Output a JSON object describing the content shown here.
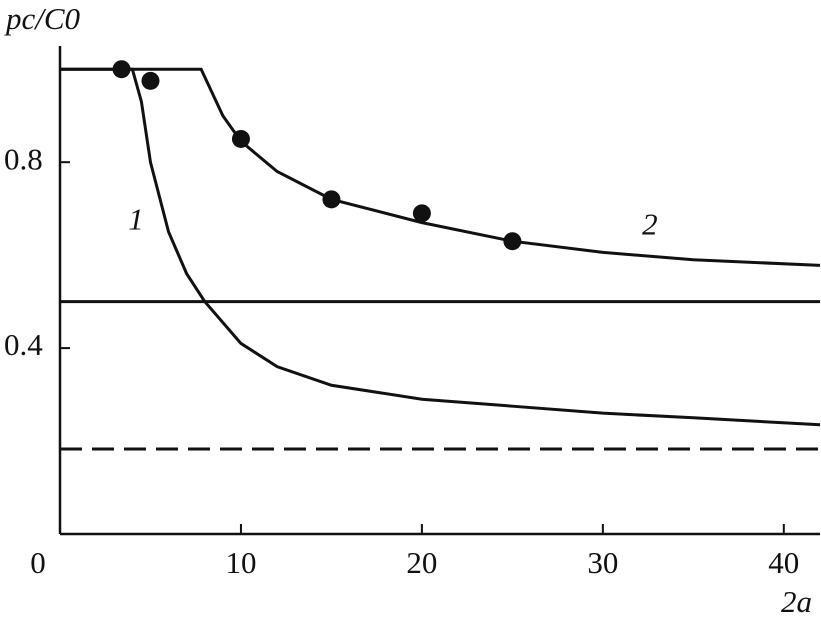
{
  "chart_data": {
    "type": "line",
    "y_label": "pc/C0",
    "x_label": "2a",
    "xlim": [
      0,
      42
    ],
    "ylim": [
      0,
      1.05
    ],
    "xticks": [
      0,
      10,
      20,
      30,
      40
    ],
    "yticks": [
      0.4,
      0.8
    ],
    "series": [
      {
        "name": "1",
        "color": "#111111",
        "x": [
          0,
          4,
          4.5,
          5,
          6,
          7,
          8,
          10,
          12,
          15,
          20,
          25,
          30,
          35,
          42
        ],
        "values": [
          1.0,
          1.0,
          0.93,
          0.8,
          0.65,
          0.56,
          0.5,
          0.41,
          0.36,
          0.32,
          0.29,
          0.275,
          0.26,
          0.25,
          0.235
        ]
      },
      {
        "name": "2",
        "color": "#111111",
        "x": [
          0,
          7.8,
          9,
          10,
          12,
          15,
          20,
          25,
          30,
          35,
          42
        ],
        "values": [
          1.0,
          1.0,
          0.9,
          0.845,
          0.78,
          0.72,
          0.67,
          0.63,
          0.606,
          0.59,
          0.578
        ]
      }
    ],
    "hlines": [
      {
        "value": 0.5,
        "style": "solid"
      },
      {
        "value": 0.183,
        "style": "dashed"
      }
    ],
    "points": {
      "color": "#111111",
      "x": [
        3.4,
        5,
        10,
        15,
        20,
        25
      ],
      "y": [
        1.0,
        0.975,
        0.85,
        0.72,
        0.69,
        0.63
      ]
    }
  }
}
